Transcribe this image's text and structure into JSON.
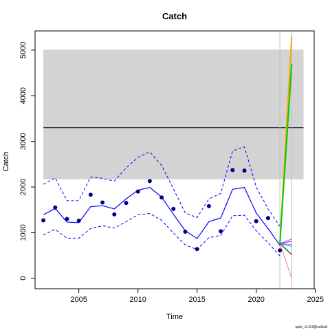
{
  "chart_data": {
    "type": "line",
    "title": "Catch",
    "xlabel": "Time",
    "ylabel": "Catch",
    "footnote": "spict_v1.3.5@sc6eaf",
    "xlim": [
      2001.3,
      2024.9
    ],
    "ylim": [
      -230,
      5420
    ],
    "x_ticks": [
      2005,
      2010,
      2015,
      2020,
      2025
    ],
    "y_ticks": [
      0,
      1000,
      2000,
      3000,
      4000,
      5000
    ],
    "grid": false,
    "legend": "none",
    "colors": {
      "estimate": "#0000ff",
      "observed": "#00008b",
      "msy_band": "#d3d3d3",
      "msy_line": "#000000",
      "vline": "#bebebe"
    },
    "msy_band": {
      "x": [
        2002,
        2024
      ],
      "lower": 2170,
      "upper": 5010
    },
    "msy_line": {
      "x": [
        2002,
        2024
      ],
      "value": 3300
    },
    "vlines": [
      2022,
      2023
    ],
    "observed": {
      "x": [
        2002,
        2003,
        2004,
        2005,
        2006,
        2007,
        2008,
        2009,
        2010,
        2011,
        2012,
        2013,
        2014,
        2015,
        2016,
        2017,
        2018,
        2019,
        2020,
        2021,
        2022
      ],
      "y": [
        1270,
        1550,
        1300,
        1260,
        1830,
        1660,
        1400,
        1650,
        1900,
        2130,
        1770,
        1520,
        1020,
        640,
        1580,
        1030,
        2370,
        2360,
        1250,
        1320,
        610
      ]
    },
    "estimate": {
      "x": [
        2002,
        2003,
        2004,
        2005,
        2006,
        2007,
        2008,
        2009,
        2010,
        2011,
        2012,
        2013,
        2014,
        2015,
        2016,
        2017,
        2018,
        2019,
        2020,
        2021,
        2022
      ],
      "y": [
        1390,
        1530,
        1230,
        1220,
        1570,
        1590,
        1520,
        1740,
        1930,
        1990,
        1780,
        1400,
        1040,
        870,
        1240,
        1320,
        1950,
        1990,
        1430,
        1090,
        720
      ],
      "lower": [
        950,
        1070,
        880,
        880,
        1090,
        1150,
        1100,
        1240,
        1390,
        1420,
        1270,
        990,
        730,
        630,
        890,
        940,
        1370,
        1380,
        1040,
        780,
        490
      ],
      "upper": [
        2060,
        2200,
        1700,
        1700,
        2220,
        2190,
        2130,
        2420,
        2650,
        2770,
        2470,
        1960,
        1430,
        1330,
        1740,
        1860,
        2790,
        2880,
        2000,
        1520,
        1140
      ]
    },
    "forecast": [
      {
        "color": "#ffa500",
        "x": [
          2022,
          2023
        ],
        "y": [
          760,
          5300
        ]
      },
      {
        "color": "#00cd00",
        "x": [
          2022,
          2023
        ],
        "y": [
          760,
          4700
        ]
      },
      {
        "color": "#ff00ff",
        "x": [
          2022,
          2023
        ],
        "y": [
          760,
          860
        ]
      },
      {
        "color": "#a020f0",
        "x": [
          2022,
          2023
        ],
        "y": [
          760,
          810
        ]
      },
      {
        "color": "#00ced1",
        "x": [
          2022,
          2023
        ],
        "y": [
          760,
          740
        ]
      },
      {
        "color": "#008b8b",
        "x": [
          2022,
          2023
        ],
        "y": [
          760,
          700
        ]
      },
      {
        "color": "#000000",
        "x": [
          2022,
          2023
        ],
        "y": [
          760,
          520
        ]
      },
      {
        "color": "#fa8072",
        "x": [
          2022,
          2023
        ],
        "y": [
          760,
          0
        ]
      }
    ]
  }
}
